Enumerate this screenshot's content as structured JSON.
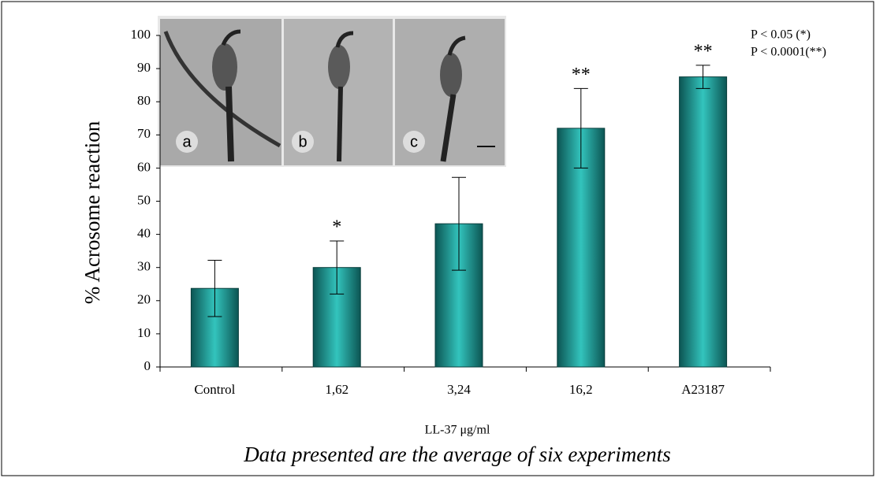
{
  "chart_data": {
    "type": "bar",
    "categories": [
      "Control",
      "1,62",
      "3,24",
      "16,2",
      "A23187"
    ],
    "values": [
      23.7,
      30,
      43.2,
      72,
      87.5
    ],
    "errors": [
      8.5,
      8,
      14,
      12,
      3.5
    ],
    "significance": [
      null,
      "*",
      null,
      "**",
      "**"
    ],
    "color": "#33c4bd",
    "ylim": [
      0,
      100
    ],
    "yticks": [
      0,
      10,
      20,
      30,
      40,
      50,
      60,
      70,
      80,
      90,
      100
    ],
    "grid": false,
    "y_label": "% Acrosome reaction",
    "x_label": "LL-37  μg/ml",
    "caption": "Data presented are the average of six experiments",
    "notes": [
      "P < 0.05 (*)",
      "P < 0.0001(**)"
    ],
    "inset_labels": [
      "a",
      "b",
      "c"
    ]
  }
}
